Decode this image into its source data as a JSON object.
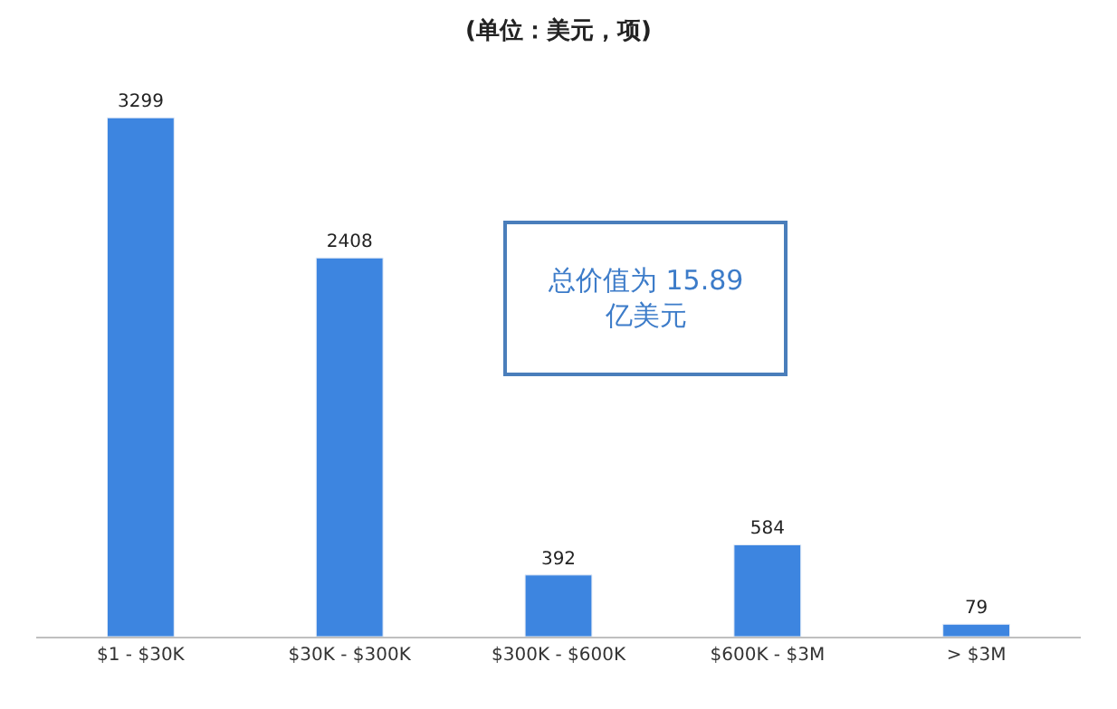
{
  "chart_data": {
    "type": "bar",
    "title": "(单位：美元，项)",
    "categories": [
      "$1 - $30K",
      "$30K - $300K",
      "$300K - $600K",
      "$600K - $3M",
      "> $3M"
    ],
    "values": [
      3299,
      2408,
      392,
      584,
      79
    ],
    "color": "#3d85e0",
    "data_labels": true,
    "annotations": [
      "总价值为 15.89\n亿美元"
    ]
  }
}
